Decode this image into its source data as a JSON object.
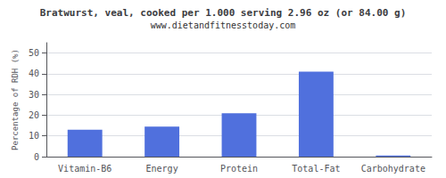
{
  "chart_data": {
    "type": "bar",
    "title": "Bratwurst, veal, cooked per 1.000 serving 2.96 oz (or 84.00 g)",
    "subtitle": "www.dietandfitnesstoday.com",
    "categories": [
      "Vitamin-B6",
      "Energy",
      "Protein",
      "Total-Fat",
      "Carbohydrate"
    ],
    "values": [
      13,
      14.5,
      21,
      41,
      0.5
    ],
    "ylabel": "Percentage of RDH (%)",
    "ylim": [
      0,
      55
    ],
    "yticks": [
      0,
      10,
      20,
      30,
      40,
      50
    ],
    "grid": true
  }
}
